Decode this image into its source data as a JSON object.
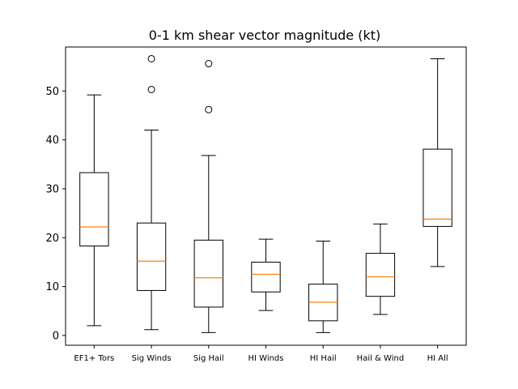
{
  "chart_data": {
    "type": "box",
    "title": "0-1 km shear vector magnitude (kt)",
    "xlabel": "",
    "ylabel": "",
    "ylim": [
      -2,
      59
    ],
    "yticks": [
      0,
      10,
      20,
      30,
      40,
      50
    ],
    "grid": false,
    "categories": [
      "EF1+ Tors",
      "Sig Winds",
      "Sig Hail",
      "HI Winds",
      "HI Hail",
      "Hail & Wind",
      "HI All"
    ],
    "series": [
      {
        "category": "EF1+ Tors",
        "whisker_low": 2.0,
        "q1": 18.3,
        "median": 22.2,
        "q3": 33.3,
        "whisker_high": 49.2,
        "outliers": []
      },
      {
        "category": "Sig Winds",
        "whisker_low": 1.2,
        "q1": 9.2,
        "median": 15.2,
        "q3": 23.0,
        "whisker_high": 42.0,
        "outliers": [
          50.3,
          56.6
        ]
      },
      {
        "category": "Sig Hail",
        "whisker_low": 0.6,
        "q1": 5.8,
        "median": 11.8,
        "q3": 19.5,
        "whisker_high": 36.8,
        "outliers": [
          46.2,
          55.6
        ]
      },
      {
        "category": "HI Winds",
        "whisker_low": 5.1,
        "q1": 8.9,
        "median": 12.5,
        "q3": 15.0,
        "whisker_high": 19.7,
        "outliers": []
      },
      {
        "category": "HI Hail",
        "whisker_low": 0.6,
        "q1": 3.0,
        "median": 6.8,
        "q3": 10.5,
        "whisker_high": 19.3,
        "outliers": []
      },
      {
        "category": "Hail & Wind",
        "whisker_low": 4.3,
        "q1": 8.0,
        "median": 12.0,
        "q3": 16.8,
        "whisker_high": 22.8,
        "outliers": []
      },
      {
        "category": "HI All",
        "whisker_low": 14.1,
        "q1": 22.3,
        "median": 23.8,
        "q3": 38.1,
        "whisker_high": 56.6,
        "outliers": []
      }
    ],
    "colors": {
      "box": "#000000",
      "median": "#ff7f0e",
      "whisker": "#000000",
      "flier": "#000000"
    }
  }
}
